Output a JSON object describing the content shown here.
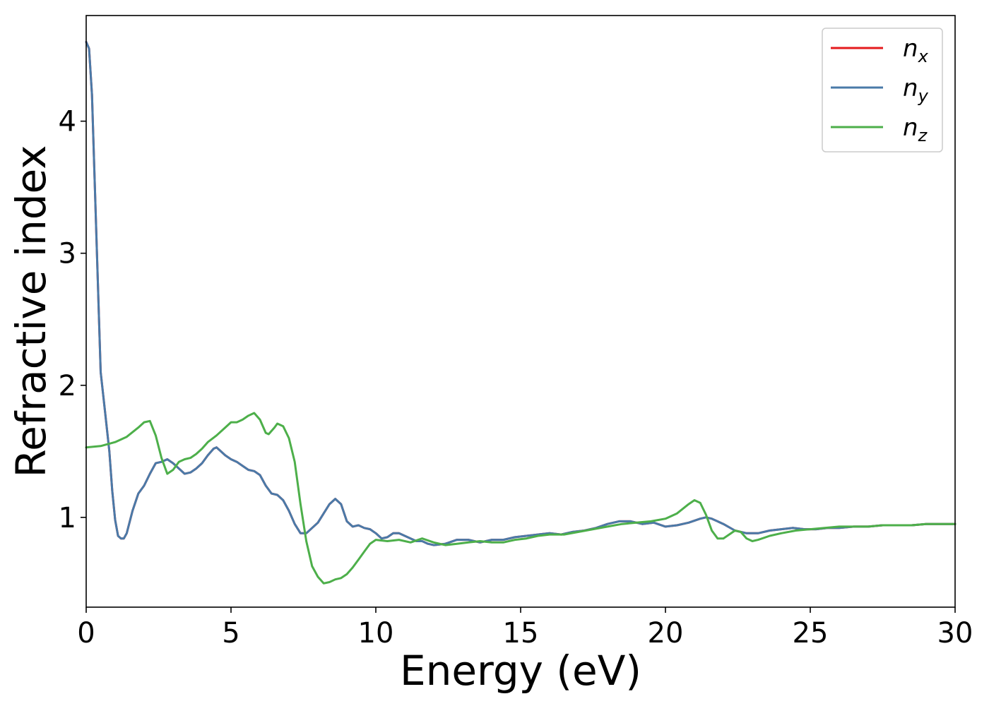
{
  "chart_data": {
    "type": "line",
    "title": "",
    "xlabel": "Energy (eV)",
    "ylabel": "Refractive index",
    "xlim": [
      0,
      30
    ],
    "ylim": [
      0.32,
      4.8
    ],
    "xticks": [
      0,
      5,
      10,
      15,
      20,
      25,
      30
    ],
    "yticks": [
      1,
      2,
      3,
      4
    ],
    "grid": false,
    "legend": {
      "position": "top-right"
    },
    "series": [
      {
        "name": "n",
        "subscript": "x",
        "color": "#e41a1c",
        "points": [
          [
            0,
            4.6
          ],
          [
            0.1,
            4.55
          ],
          [
            0.2,
            4.2
          ],
          [
            0.3,
            3.5
          ],
          [
            0.4,
            2.8
          ],
          [
            0.5,
            2.1
          ],
          [
            0.65,
            1.8
          ],
          [
            0.8,
            1.5
          ],
          [
            0.9,
            1.2
          ],
          [
            1.0,
            0.98
          ],
          [
            1.1,
            0.86
          ],
          [
            1.2,
            0.84
          ],
          [
            1.3,
            0.84
          ],
          [
            1.4,
            0.88
          ],
          [
            1.6,
            1.05
          ],
          [
            1.8,
            1.18
          ],
          [
            2.0,
            1.24
          ],
          [
            2.2,
            1.33
          ],
          [
            2.4,
            1.41
          ],
          [
            2.6,
            1.42
          ],
          [
            2.8,
            1.44
          ],
          [
            3.0,
            1.41
          ],
          [
            3.2,
            1.37
          ],
          [
            3.4,
            1.33
          ],
          [
            3.6,
            1.34
          ],
          [
            3.8,
            1.37
          ],
          [
            4.0,
            1.41
          ],
          [
            4.2,
            1.47
          ],
          [
            4.4,
            1.52
          ],
          [
            4.5,
            1.53
          ],
          [
            4.6,
            1.51
          ],
          [
            4.8,
            1.47
          ],
          [
            5.0,
            1.44
          ],
          [
            5.2,
            1.42
          ],
          [
            5.4,
            1.39
          ],
          [
            5.6,
            1.36
          ],
          [
            5.8,
            1.35
          ],
          [
            6.0,
            1.32
          ],
          [
            6.2,
            1.24
          ],
          [
            6.4,
            1.18
          ],
          [
            6.6,
            1.17
          ],
          [
            6.8,
            1.13
          ],
          [
            7.0,
            1.05
          ],
          [
            7.2,
            0.95
          ],
          [
            7.4,
            0.88
          ],
          [
            7.6,
            0.88
          ],
          [
            7.8,
            0.92
          ],
          [
            8.0,
            0.96
          ],
          [
            8.2,
            1.03
          ],
          [
            8.4,
            1.1
          ],
          [
            8.6,
            1.14
          ],
          [
            8.8,
            1.1
          ],
          [
            9.0,
            0.97
          ],
          [
            9.2,
            0.93
          ],
          [
            9.4,
            0.94
          ],
          [
            9.6,
            0.92
          ],
          [
            9.8,
            0.91
          ],
          [
            10.0,
            0.88
          ],
          [
            10.2,
            0.84
          ],
          [
            10.4,
            0.85
          ],
          [
            10.6,
            0.88
          ],
          [
            10.8,
            0.88
          ],
          [
            11.0,
            0.86
          ],
          [
            11.2,
            0.84
          ],
          [
            11.4,
            0.82
          ],
          [
            11.6,
            0.82
          ],
          [
            11.8,
            0.8
          ],
          [
            12.0,
            0.79
          ],
          [
            12.4,
            0.8
          ],
          [
            12.8,
            0.83
          ],
          [
            13.2,
            0.83
          ],
          [
            13.6,
            0.81
          ],
          [
            14.0,
            0.83
          ],
          [
            14.4,
            0.83
          ],
          [
            14.8,
            0.85
          ],
          [
            15.2,
            0.86
          ],
          [
            15.6,
            0.87
          ],
          [
            16.0,
            0.88
          ],
          [
            16.4,
            0.87
          ],
          [
            16.8,
            0.89
          ],
          [
            17.2,
            0.9
          ],
          [
            17.6,
            0.92
          ],
          [
            18.0,
            0.95
          ],
          [
            18.4,
            0.97
          ],
          [
            18.8,
            0.97
          ],
          [
            19.2,
            0.95
          ],
          [
            19.6,
            0.96
          ],
          [
            20.0,
            0.93
          ],
          [
            20.4,
            0.94
          ],
          [
            20.8,
            0.96
          ],
          [
            21.2,
            0.99
          ],
          [
            21.4,
            1.0
          ],
          [
            21.6,
            0.99
          ],
          [
            22.0,
            0.95
          ],
          [
            22.4,
            0.9
          ],
          [
            22.8,
            0.88
          ],
          [
            23.2,
            0.88
          ],
          [
            23.6,
            0.9
          ],
          [
            24.0,
            0.91
          ],
          [
            24.4,
            0.92
          ],
          [
            24.8,
            0.91
          ],
          [
            25.2,
            0.91
          ],
          [
            25.6,
            0.92
          ],
          [
            26.0,
            0.92
          ],
          [
            26.5,
            0.93
          ],
          [
            27.0,
            0.93
          ],
          [
            27.5,
            0.94
          ],
          [
            28.0,
            0.94
          ],
          [
            28.5,
            0.94
          ],
          [
            29.0,
            0.95
          ],
          [
            29.5,
            0.95
          ],
          [
            30.0,
            0.95
          ]
        ]
      },
      {
        "name": "n",
        "subscript": "y",
        "color": "#4a7aa8",
        "points": [
          [
            0,
            4.6
          ],
          [
            0.1,
            4.55
          ],
          [
            0.2,
            4.2
          ],
          [
            0.3,
            3.5
          ],
          [
            0.4,
            2.8
          ],
          [
            0.5,
            2.1
          ],
          [
            0.65,
            1.8
          ],
          [
            0.8,
            1.5
          ],
          [
            0.9,
            1.2
          ],
          [
            1.0,
            0.98
          ],
          [
            1.1,
            0.86
          ],
          [
            1.2,
            0.84
          ],
          [
            1.3,
            0.84
          ],
          [
            1.4,
            0.88
          ],
          [
            1.6,
            1.05
          ],
          [
            1.8,
            1.18
          ],
          [
            2.0,
            1.24
          ],
          [
            2.2,
            1.33
          ],
          [
            2.4,
            1.41
          ],
          [
            2.6,
            1.42
          ],
          [
            2.8,
            1.44
          ],
          [
            3.0,
            1.41
          ],
          [
            3.2,
            1.37
          ],
          [
            3.4,
            1.33
          ],
          [
            3.6,
            1.34
          ],
          [
            3.8,
            1.37
          ],
          [
            4.0,
            1.41
          ],
          [
            4.2,
            1.47
          ],
          [
            4.4,
            1.52
          ],
          [
            4.5,
            1.53
          ],
          [
            4.6,
            1.51
          ],
          [
            4.8,
            1.47
          ],
          [
            5.0,
            1.44
          ],
          [
            5.2,
            1.42
          ],
          [
            5.4,
            1.39
          ],
          [
            5.6,
            1.36
          ],
          [
            5.8,
            1.35
          ],
          [
            6.0,
            1.32
          ],
          [
            6.2,
            1.24
          ],
          [
            6.4,
            1.18
          ],
          [
            6.6,
            1.17
          ],
          [
            6.8,
            1.13
          ],
          [
            7.0,
            1.05
          ],
          [
            7.2,
            0.95
          ],
          [
            7.4,
            0.88
          ],
          [
            7.6,
            0.88
          ],
          [
            7.8,
            0.92
          ],
          [
            8.0,
            0.96
          ],
          [
            8.2,
            1.03
          ],
          [
            8.4,
            1.1
          ],
          [
            8.6,
            1.14
          ],
          [
            8.8,
            1.1
          ],
          [
            9.0,
            0.97
          ],
          [
            9.2,
            0.93
          ],
          [
            9.4,
            0.94
          ],
          [
            9.6,
            0.92
          ],
          [
            9.8,
            0.91
          ],
          [
            10.0,
            0.88
          ],
          [
            10.2,
            0.84
          ],
          [
            10.4,
            0.85
          ],
          [
            10.6,
            0.88
          ],
          [
            10.8,
            0.88
          ],
          [
            11.0,
            0.86
          ],
          [
            11.2,
            0.84
          ],
          [
            11.4,
            0.82
          ],
          [
            11.6,
            0.82
          ],
          [
            11.8,
            0.8
          ],
          [
            12.0,
            0.79
          ],
          [
            12.4,
            0.8
          ],
          [
            12.8,
            0.83
          ],
          [
            13.2,
            0.83
          ],
          [
            13.6,
            0.81
          ],
          [
            14.0,
            0.83
          ],
          [
            14.4,
            0.83
          ],
          [
            14.8,
            0.85
          ],
          [
            15.2,
            0.86
          ],
          [
            15.6,
            0.87
          ],
          [
            16.0,
            0.88
          ],
          [
            16.4,
            0.87
          ],
          [
            16.8,
            0.89
          ],
          [
            17.2,
            0.9
          ],
          [
            17.6,
            0.92
          ],
          [
            18.0,
            0.95
          ],
          [
            18.4,
            0.97
          ],
          [
            18.8,
            0.97
          ],
          [
            19.2,
            0.95
          ],
          [
            19.6,
            0.96
          ],
          [
            20.0,
            0.93
          ],
          [
            20.4,
            0.94
          ],
          [
            20.8,
            0.96
          ],
          [
            21.2,
            0.99
          ],
          [
            21.4,
            1.0
          ],
          [
            21.6,
            0.99
          ],
          [
            22.0,
            0.95
          ],
          [
            22.4,
            0.9
          ],
          [
            22.8,
            0.88
          ],
          [
            23.2,
            0.88
          ],
          [
            23.6,
            0.9
          ],
          [
            24.0,
            0.91
          ],
          [
            24.4,
            0.92
          ],
          [
            24.8,
            0.91
          ],
          [
            25.2,
            0.91
          ],
          [
            25.6,
            0.92
          ],
          [
            26.0,
            0.92
          ],
          [
            26.5,
            0.93
          ],
          [
            27.0,
            0.93
          ],
          [
            27.5,
            0.94
          ],
          [
            28.0,
            0.94
          ],
          [
            28.5,
            0.94
          ],
          [
            29.0,
            0.95
          ],
          [
            29.5,
            0.95
          ],
          [
            30.0,
            0.95
          ]
        ]
      },
      {
        "name": "n",
        "subscript": "z",
        "color": "#4daf4a",
        "points": [
          [
            0,
            1.53
          ],
          [
            0.5,
            1.54
          ],
          [
            1.0,
            1.57
          ],
          [
            1.4,
            1.61
          ],
          [
            1.8,
            1.68
          ],
          [
            2.0,
            1.72
          ],
          [
            2.2,
            1.73
          ],
          [
            2.4,
            1.62
          ],
          [
            2.6,
            1.45
          ],
          [
            2.8,
            1.33
          ],
          [
            3.0,
            1.36
          ],
          [
            3.2,
            1.42
          ],
          [
            3.4,
            1.44
          ],
          [
            3.6,
            1.45
          ],
          [
            3.8,
            1.48
          ],
          [
            4.0,
            1.52
          ],
          [
            4.2,
            1.57
          ],
          [
            4.5,
            1.62
          ],
          [
            4.8,
            1.68
          ],
          [
            5.0,
            1.72
          ],
          [
            5.2,
            1.72
          ],
          [
            5.4,
            1.74
          ],
          [
            5.6,
            1.77
          ],
          [
            5.8,
            1.79
          ],
          [
            6.0,
            1.74
          ],
          [
            6.2,
            1.64
          ],
          [
            6.3,
            1.63
          ],
          [
            6.5,
            1.68
          ],
          [
            6.6,
            1.71
          ],
          [
            6.8,
            1.69
          ],
          [
            7.0,
            1.6
          ],
          [
            7.2,
            1.42
          ],
          [
            7.4,
            1.1
          ],
          [
            7.6,
            0.82
          ],
          [
            7.8,
            0.63
          ],
          [
            8.0,
            0.55
          ],
          [
            8.2,
            0.5
          ],
          [
            8.4,
            0.51
          ],
          [
            8.6,
            0.53
          ],
          [
            8.8,
            0.54
          ],
          [
            9.0,
            0.57
          ],
          [
            9.2,
            0.62
          ],
          [
            9.4,
            0.68
          ],
          [
            9.6,
            0.74
          ],
          [
            9.8,
            0.8
          ],
          [
            10.0,
            0.83
          ],
          [
            10.4,
            0.82
          ],
          [
            10.8,
            0.83
          ],
          [
            11.2,
            0.81
          ],
          [
            11.6,
            0.84
          ],
          [
            12.0,
            0.81
          ],
          [
            12.4,
            0.79
          ],
          [
            12.8,
            0.8
          ],
          [
            13.2,
            0.81
          ],
          [
            13.6,
            0.82
          ],
          [
            14.0,
            0.81
          ],
          [
            14.4,
            0.81
          ],
          [
            14.8,
            0.83
          ],
          [
            15.2,
            0.84
          ],
          [
            15.6,
            0.86
          ],
          [
            16.0,
            0.87
          ],
          [
            16.5,
            0.87
          ],
          [
            17.0,
            0.89
          ],
          [
            17.5,
            0.91
          ],
          [
            18.0,
            0.93
          ],
          [
            18.5,
            0.95
          ],
          [
            19.0,
            0.96
          ],
          [
            19.5,
            0.97
          ],
          [
            20.0,
            0.99
          ],
          [
            20.4,
            1.03
          ],
          [
            20.8,
            1.1
          ],
          [
            21.0,
            1.13
          ],
          [
            21.2,
            1.11
          ],
          [
            21.4,
            1.02
          ],
          [
            21.6,
            0.9
          ],
          [
            21.8,
            0.84
          ],
          [
            22.0,
            0.84
          ],
          [
            22.2,
            0.87
          ],
          [
            22.4,
            0.9
          ],
          [
            22.6,
            0.89
          ],
          [
            22.8,
            0.84
          ],
          [
            23.0,
            0.82
          ],
          [
            23.2,
            0.83
          ],
          [
            23.6,
            0.86
          ],
          [
            24.0,
            0.88
          ],
          [
            24.5,
            0.9
          ],
          [
            25.0,
            0.91
          ],
          [
            25.5,
            0.92
          ],
          [
            26.0,
            0.93
          ],
          [
            26.5,
            0.93
          ],
          [
            27.0,
            0.93
          ],
          [
            27.5,
            0.94
          ],
          [
            28.0,
            0.94
          ],
          [
            28.5,
            0.94
          ],
          [
            29.0,
            0.95
          ],
          [
            29.5,
            0.95
          ],
          [
            30.0,
            0.95
          ]
        ]
      }
    ]
  }
}
